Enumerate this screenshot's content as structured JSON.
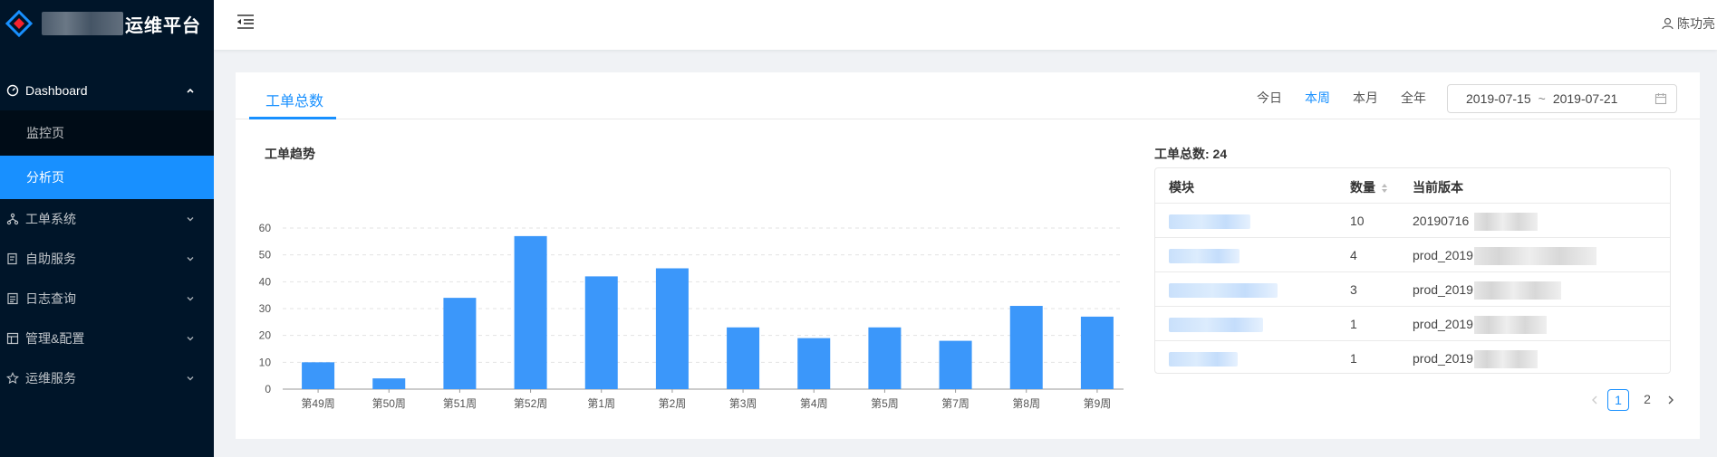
{
  "app": {
    "title": "运维平台"
  },
  "sidebar": {
    "items": [
      {
        "label": "Dashboard",
        "icon": "dashboard-icon",
        "open": true,
        "children": [
          {
            "label": "监控页"
          },
          {
            "label": "分析页",
            "active": true
          }
        ]
      },
      {
        "label": "工单系统",
        "icon": "apartment-icon"
      },
      {
        "label": "自助服务",
        "icon": "form-icon"
      },
      {
        "label": "日志查询",
        "icon": "profile-icon"
      },
      {
        "label": "管理&配置",
        "icon": "layout-icon"
      },
      {
        "label": "运维服务",
        "icon": "star-icon"
      }
    ]
  },
  "header": {
    "user_name": "陈功亮"
  },
  "card": {
    "tab_label": "工单总数",
    "ranges": [
      "今日",
      "本周",
      "本月",
      "全年"
    ],
    "active_range": "本周",
    "date_start": "2019-07-15",
    "date_sep": "~",
    "date_end": "2019-07-21"
  },
  "chart_title": "工单趋势",
  "chart_data": {
    "type": "bar",
    "categories": [
      "第49周",
      "第50周",
      "第51周",
      "第52周",
      "第1周",
      "第2周",
      "第3周",
      "第4周",
      "第5周",
      "第7周",
      "第8周",
      "第9周"
    ],
    "values": [
      10,
      4,
      34,
      57,
      42,
      45,
      23,
      19,
      23,
      18,
      31,
      27
    ],
    "ylim": [
      0,
      60
    ],
    "yticks": [
      0,
      10,
      20,
      30,
      40,
      50,
      60
    ],
    "color": "#3b97fa",
    "grid": true
  },
  "table": {
    "title": "工单总数: 24",
    "columns": [
      "模块",
      "数量",
      "当前版本"
    ],
    "rows": [
      {
        "count": "10",
        "version": "20190716"
      },
      {
        "count": "4",
        "version": "prod_2019"
      },
      {
        "count": "3",
        "version": "prod_2019"
      },
      {
        "count": "1",
        "version": "prod_2019"
      },
      {
        "count": "1",
        "version": "prod_2019"
      }
    ]
  },
  "pagination": {
    "pages": [
      "1",
      "2"
    ],
    "current": "1"
  },
  "colors": {
    "accent": "#1890ff",
    "sidebar_bg": "#001529",
    "submenu_bg": "#000c17"
  }
}
